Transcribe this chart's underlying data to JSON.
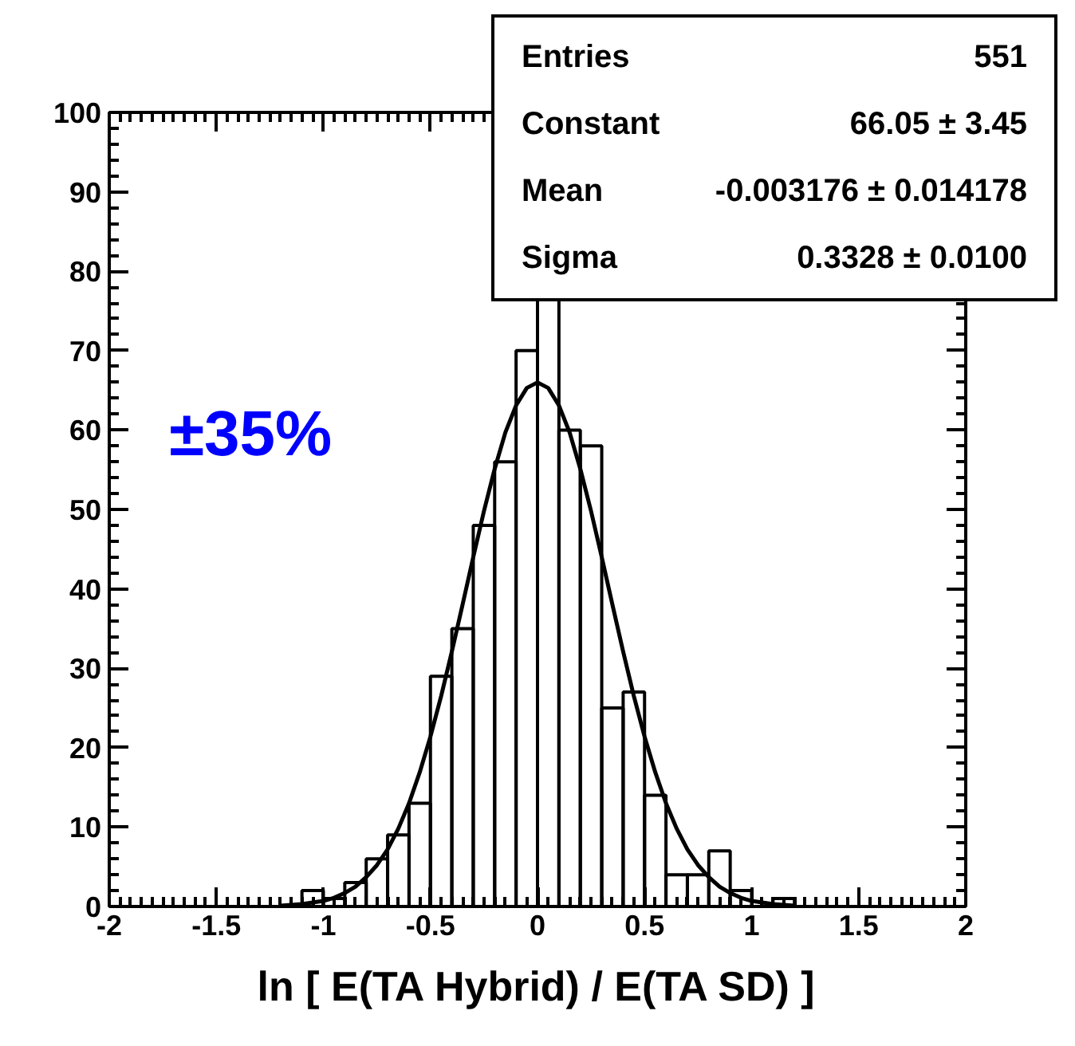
{
  "chart_data": {
    "type": "histogram",
    "xlabel": "ln [ E(TA Hybrid) / E(TA SD) ]",
    "bins": [
      -1.1,
      -1.0,
      -0.9,
      -0.8,
      -0.7,
      -0.6,
      -0.5,
      -0.4,
      -0.3,
      -0.2,
      -0.1,
      0.0,
      0.1,
      0.2,
      0.3,
      0.4,
      0.5,
      0.6,
      0.7,
      0.8,
      0.9,
      1.0,
      1.1,
      1.2
    ],
    "values": [
      2,
      1,
      3,
      6,
      9,
      13,
      29,
      35,
      48,
      56,
      70,
      77,
      60,
      58,
      25,
      27,
      14,
      4,
      4,
      7,
      2,
      0,
      1
    ],
    "color": "#000000",
    "series": [
      {
        "type": "line",
        "color": "#000000",
        "x": [
          -1.2,
          -1.1,
          -1.0,
          -0.95,
          -0.9,
          -0.85,
          -0.8,
          -0.75,
          -0.7,
          -0.65,
          -0.6,
          -0.55,
          -0.5,
          -0.45,
          -0.4,
          -0.35,
          -0.3,
          -0.25,
          -0.2,
          -0.15,
          -0.1,
          -0.05,
          0.0,
          0.05,
          0.1,
          0.15,
          0.2,
          0.25,
          0.3,
          0.35,
          0.4,
          0.45,
          0.5,
          0.55,
          0.6,
          0.65,
          0.7,
          0.75,
          0.8,
          0.85,
          0.9,
          0.95,
          1.0,
          1.1,
          1.2
        ],
        "values": [
          0.1,
          0.3,
          0.7,
          1.1,
          1.7,
          2.5,
          3.7,
          5.2,
          7.2,
          9.8,
          13.0,
          16.9,
          21.4,
          26.5,
          32.1,
          38.0,
          44.0,
          49.8,
          55.1,
          59.7,
          63.1,
          65.3,
          66.0,
          65.3,
          63.1,
          59.7,
          55.1,
          49.8,
          44.0,
          38.0,
          32.1,
          26.5,
          21.4,
          16.9,
          13.0,
          9.8,
          7.2,
          5.2,
          3.7,
          2.5,
          1.7,
          1.1,
          0.7,
          0.3,
          0.1
        ]
      }
    ],
    "annotations": [
      "±35%",
      "Entries",
      "551",
      "Constant",
      "66.05 ± 3.45",
      "Mean",
      "-0.003176 ± 0.014178",
      "Sigma",
      "0.3328 ± 0.0100"
    ],
    "xlim": [
      -2,
      2
    ],
    "ylim": [
      0,
      100
    ],
    "xticks": [
      -2,
      -1.5,
      -1,
      -0.5,
      0,
      0.5,
      1,
      1.5,
      2
    ],
    "yticks": [
      0,
      10,
      20,
      30,
      40,
      50,
      60,
      70,
      80,
      90,
      100
    ],
    "grid": false
  }
}
